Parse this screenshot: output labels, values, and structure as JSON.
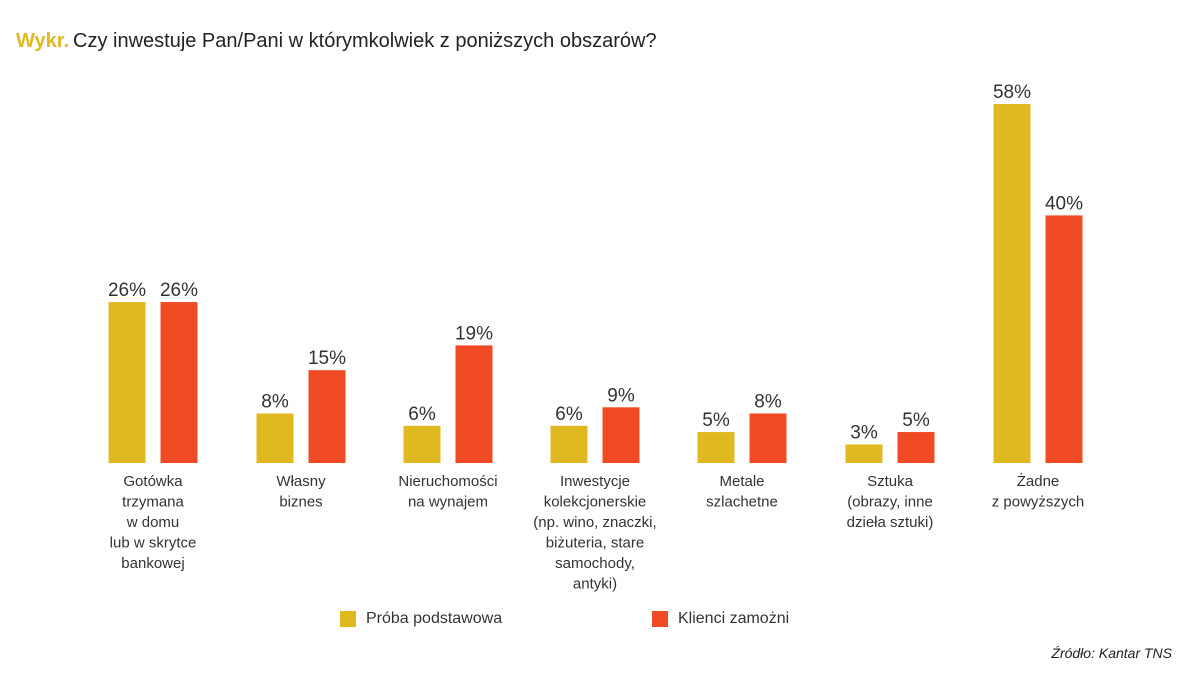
{
  "header": {
    "prefix": "Wykr.",
    "title": "Czy inwestuje Pan/Pani w którymkolwiek z poniższych obszarów?"
  },
  "colors": {
    "accent": "#e0b820",
    "series_1": "#e0b820",
    "series_2": "#ef4a23",
    "text": "#333333"
  },
  "chart_data": {
    "type": "bar",
    "title": "Czy inwestuje Pan/Pani w którymkolwiek z poniższych obszarów?",
    "categories": [
      "Gotówka trzymana w domu lub w skrytce bankowej",
      "Własny biznes",
      "Nieruchomości na wynajem",
      "Inwestycje kolekcjonerskie (np. wino, znaczki, biżuteria, stare samochody, antyki)",
      "Metale szlachetne",
      "Sztuka (obrazy, inne dzieła sztuki)",
      "Żadne z powyższych"
    ],
    "category_lines": [
      [
        "Gotówka",
        "trzymana",
        "w domu",
        "lub w skrytce",
        "bankowej"
      ],
      [
        "Własny",
        "biznes"
      ],
      [
        "Nieruchomości",
        "na wynajem"
      ],
      [
        "Inwestycje",
        "kolekcjonerskie",
        "(np. wino, znaczki,",
        "biżuteria, stare",
        "samochody,",
        "antyki)"
      ],
      [
        "Metale",
        "szlachetne"
      ],
      [
        "Sztuka",
        "(obrazy, inne",
        "dzieła sztuki)"
      ],
      [
        "Żadne",
        "z powyższych"
      ]
    ],
    "series": [
      {
        "name": "Próba podstawowa",
        "color": "#e0b820",
        "values": [
          26,
          8,
          6,
          6,
          5,
          3,
          58
        ]
      },
      {
        "name": "Klienci zamożni",
        "color": "#ef4a23",
        "values": [
          26,
          15,
          19,
          9,
          8,
          5,
          40
        ]
      }
    ],
    "value_suffix": "%",
    "ylim": [
      0,
      58
    ],
    "grid": false,
    "legend_position": "bottom-center"
  },
  "source": "Źródło: Kantar TNS"
}
